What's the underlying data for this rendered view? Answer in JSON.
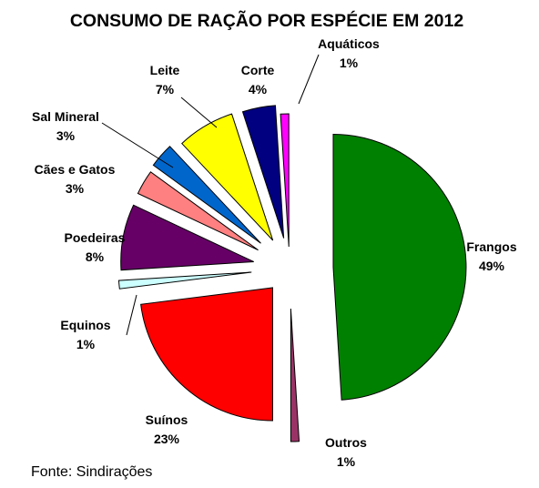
{
  "chart_data": {
    "type": "pie",
    "exploded": true,
    "title": "CONSUMO DE RAÇÃO POR ESPÉCIE EM 2012",
    "source": "Fonte: Sindirações",
    "slices": [
      {
        "label": "Frangos",
        "value_label": "49%",
        "value": 49,
        "color": "#008000"
      },
      {
        "label": "Outros",
        "value_label": "1%",
        "value": 1,
        "color": "#993366"
      },
      {
        "label": "Suínos",
        "value_label": "23%",
        "value": 23,
        "color": "#ff0000"
      },
      {
        "label": "Equinos",
        "value_label": "1%",
        "value": 1,
        "color": "#ccffff"
      },
      {
        "label": "Poedeiras",
        "value_label": "8%",
        "value": 8,
        "color": "#660066"
      },
      {
        "label": "Cães e Gatos",
        "value_label": "3%",
        "value": 3,
        "color": "#ff8080"
      },
      {
        "label": "Sal Mineral",
        "value_label": "3%",
        "value": 3,
        "color": "#0066cc"
      },
      {
        "label": "Leite",
        "value_label": "7%",
        "value": 7,
        "color": "#ffff00"
      },
      {
        "label": "Corte",
        "value_label": "4%",
        "value": 4,
        "color": "#000080"
      },
      {
        "label": "Aquáticos",
        "value_label": "1%",
        "value": 1,
        "color": "#ff00ff"
      }
    ]
  }
}
